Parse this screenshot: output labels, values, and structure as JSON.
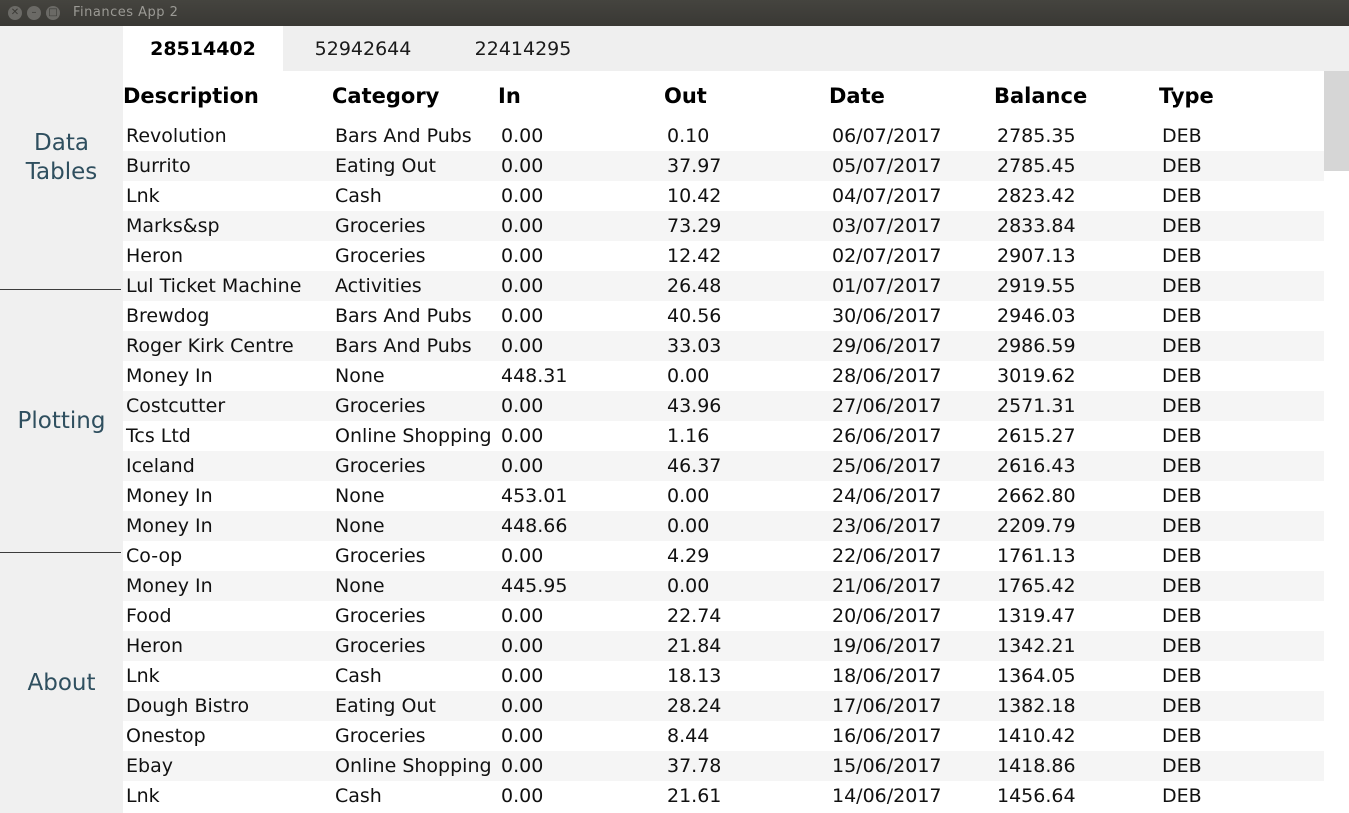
{
  "window": {
    "title": "Finances App 2"
  },
  "sidebar": {
    "items": [
      {
        "label": "Data\nTables"
      },
      {
        "label": "Plotting"
      },
      {
        "label": "About"
      }
    ]
  },
  "tabs": [
    {
      "label": "28514402",
      "active": true
    },
    {
      "label": "52942644"
    },
    {
      "label": "22414295"
    }
  ],
  "table": {
    "columns": [
      "Description",
      "Category",
      "In",
      "Out",
      "Date",
      "Balance",
      "Type"
    ],
    "rows": [
      [
        "Revolution",
        "Bars And Pubs",
        "0.00",
        "0.10",
        "06/07/2017",
        "2785.35",
        "DEB"
      ],
      [
        "Burrito",
        "Eating Out",
        "0.00",
        "37.97",
        "05/07/2017",
        "2785.45",
        "DEB"
      ],
      [
        "Lnk",
        "Cash",
        "0.00",
        "10.42",
        "04/07/2017",
        "2823.42",
        "DEB"
      ],
      [
        "Marks&sp",
        "Groceries",
        "0.00",
        "73.29",
        "03/07/2017",
        "2833.84",
        "DEB"
      ],
      [
        "Heron",
        "Groceries",
        "0.00",
        "12.42",
        "02/07/2017",
        "2907.13",
        "DEB"
      ],
      [
        "Lul Ticket Machine",
        "Activities",
        "0.00",
        "26.48",
        "01/07/2017",
        "2919.55",
        "DEB"
      ],
      [
        "Brewdog",
        "Bars And Pubs",
        "0.00",
        "40.56",
        "30/06/2017",
        "2946.03",
        "DEB"
      ],
      [
        "Roger Kirk Centre",
        "Bars And Pubs",
        "0.00",
        "33.03",
        "29/06/2017",
        "2986.59",
        "DEB"
      ],
      [
        "Money In",
        "None",
        "448.31",
        "0.00",
        "28/06/2017",
        "3019.62",
        "DEB"
      ],
      [
        "Costcutter",
        "Groceries",
        "0.00",
        "43.96",
        "27/06/2017",
        "2571.31",
        "DEB"
      ],
      [
        "Tcs Ltd",
        "Online Shopping",
        "0.00",
        "1.16",
        "26/06/2017",
        "2615.27",
        "DEB"
      ],
      [
        "Iceland",
        "Groceries",
        "0.00",
        "46.37",
        "25/06/2017",
        "2616.43",
        "DEB"
      ],
      [
        "Money In",
        "None",
        "453.01",
        "0.00",
        "24/06/2017",
        "2662.80",
        "DEB"
      ],
      [
        "Money In",
        "None",
        "448.66",
        "0.00",
        "23/06/2017",
        "2209.79",
        "DEB"
      ],
      [
        "Co-op",
        "Groceries",
        "0.00",
        "4.29",
        "22/06/2017",
        "1761.13",
        "DEB"
      ],
      [
        "Money In",
        "None",
        "445.95",
        "0.00",
        "21/06/2017",
        "1765.42",
        "DEB"
      ],
      [
        "Food",
        "Groceries",
        "0.00",
        "22.74",
        "20/06/2017",
        "1319.47",
        "DEB"
      ],
      [
        "Heron",
        "Groceries",
        "0.00",
        "21.84",
        "19/06/2017",
        "1342.21",
        "DEB"
      ],
      [
        "Lnk",
        "Cash",
        "0.00",
        "18.13",
        "18/06/2017",
        "1364.05",
        "DEB"
      ],
      [
        "Dough Bistro",
        "Eating Out",
        "0.00",
        "28.24",
        "17/06/2017",
        "1382.18",
        "DEB"
      ],
      [
        "Onestop",
        "Groceries",
        "0.00",
        "8.44",
        "16/06/2017",
        "1410.42",
        "DEB"
      ],
      [
        "Ebay",
        "Online Shopping",
        "0.00",
        "37.78",
        "15/06/2017",
        "1418.86",
        "DEB"
      ],
      [
        "Lnk",
        "Cash",
        "0.00",
        "21.61",
        "14/06/2017",
        "1456.64",
        "DEB"
      ]
    ]
  }
}
